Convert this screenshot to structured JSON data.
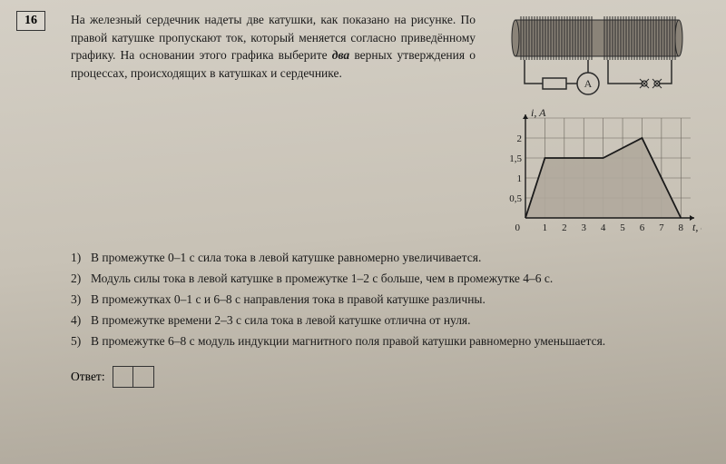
{
  "problem_number": "16",
  "intro_pre_em": "На железный сердечник надеты две катушки, как показано на рисунке. По правой катушке пропускают ток, который меняется согласно приведённому графику. На основании этого графика выберите ",
  "intro_em": "два",
  "intro_post_em": " верных утверждения о процессах, происходящих в катушках и сердечнике.",
  "diagram": {
    "ammeter_label": "A",
    "core_color": "#8a8378",
    "coil_stroke": "#2a2a2a",
    "wire_stroke": "#2a2a2a"
  },
  "graph": {
    "ylabel": "i, A",
    "xlabel": "t, c",
    "y_ticks": [
      "0,5",
      "1",
      "1,5",
      "2"
    ],
    "x_ticks": [
      "1",
      "2",
      "3",
      "4",
      "5",
      "6",
      "7",
      "8"
    ],
    "origin_label": "0",
    "points": [
      [
        0,
        0
      ],
      [
        1,
        1.5
      ],
      [
        2,
        1.5
      ],
      [
        3,
        1.5
      ],
      [
        4,
        1.5
      ],
      [
        6,
        2
      ],
      [
        8,
        0
      ]
    ],
    "fill_color": "#b0a99c",
    "grid_color": "#6a655c",
    "axis_color": "#1a1a1a",
    "line_color": "#1a1a1a",
    "x_max": 8.5,
    "y_max": 2.5,
    "font_size": 11
  },
  "options": [
    "В промежутке 0–1 с сила тока в левой катушке равномерно увеличивается.",
    "Модуль силы тока в левой катушке в промежутке 1–2 с больше, чем в промежутке 4–6 с.",
    "В промежутках 0–1 с и 6–8 с направления тока в правой катушке различны.",
    "В промежутке времени 2–3 с сила тока в левой катушке отлична от нуля.",
    "В промежутке 6–8 с модуль индукции магнитного поля правой катушки равномерно уменьшается."
  ],
  "answer_label": "Ответ:",
  "colors": {
    "text": "#1a1a1a"
  }
}
